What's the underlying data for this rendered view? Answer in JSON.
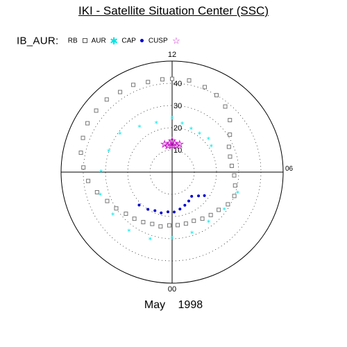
{
  "title": "IKI - Satellite Situation Center (SSC)",
  "legend": {
    "prefix": "IB_AUR:",
    "entries": [
      {
        "label": "RB",
        "symbol": "none"
      },
      {
        "label": "AUR",
        "symbol": "square"
      },
      {
        "label": "CAP",
        "symbol": "star"
      },
      {
        "label": "CUSP",
        "symbol": "dot"
      },
      {
        "label": "",
        "symbol": "open-star"
      }
    ]
  },
  "colors": {
    "AUR": "#777777",
    "CAP": "#00e5e5",
    "CUSP": "#0000cc",
    "RB": "#cc22cc"
  },
  "chart_data": {
    "type": "scatter",
    "projection": "polar (magnetic local time vs colatitude)",
    "mlt_labels": {
      "top": "12",
      "right": "06",
      "bottom": "00"
    },
    "radial_ticks": [
      10,
      20,
      30,
      40
    ],
    "radial_tick_labels": [
      "10",
      "20",
      "30",
      "40"
    ],
    "outer_radius": 50,
    "grid": "dotted circles",
    "series": [
      {
        "name": "AUR",
        "marker": "open-square",
        "region": "auroral oval",
        "points": [
          [
            12.0,
            42
          ],
          [
            11.3,
            42
          ],
          [
            10.6,
            41
          ],
          [
            10.0,
            40
          ],
          [
            9.4,
            38
          ],
          [
            8.8,
            35
          ],
          [
            8.2,
            31
          ],
          [
            7.6,
            28
          ],
          [
            7.0,
            27
          ],
          [
            6.4,
            27
          ],
          [
            5.8,
            28
          ],
          [
            5.2,
            29
          ],
          [
            4.6,
            30
          ],
          [
            4.0,
            29
          ],
          [
            3.4,
            27
          ],
          [
            2.8,
            26
          ],
          [
            2.2,
            25
          ],
          [
            1.6,
            24
          ],
          [
            1.0,
            24
          ],
          [
            0.4,
            24
          ],
          [
            23.8,
            24
          ],
          [
            23.2,
            25
          ],
          [
            22.6,
            25
          ],
          [
            22.0,
            26
          ],
          [
            21.4,
            27
          ],
          [
            20.8,
            28
          ],
          [
            20.2,
            30
          ],
          [
            19.6,
            32
          ],
          [
            19.0,
            35
          ],
          [
            18.4,
            38
          ],
          [
            17.8,
            40
          ],
          [
            17.2,
            42
          ],
          [
            16.6,
            43
          ],
          [
            16.0,
            44
          ],
          [
            15.4,
            44
          ],
          [
            14.8,
            44
          ],
          [
            14.2,
            43
          ],
          [
            13.6,
            43
          ],
          [
            13.0,
            42
          ],
          [
            12.4,
            42
          ]
        ]
      },
      {
        "name": "CAP",
        "marker": "asterisk",
        "region": "polar cap",
        "points": [
          [
            12.0,
            24
          ],
          [
            11.2,
            22
          ],
          [
            10.4,
            21
          ],
          [
            9.6,
            21
          ],
          [
            8.8,
            22
          ],
          [
            8.2,
            21
          ],
          [
            13.2,
            23
          ],
          [
            14.4,
            25
          ],
          [
            15.6,
            29
          ],
          [
            16.8,
            30
          ],
          [
            18.0,
            32
          ],
          [
            19.2,
            34
          ],
          [
            20.4,
            33
          ],
          [
            21.6,
            33
          ],
          [
            22.8,
            32
          ],
          [
            0.0,
            30
          ],
          [
            1.2,
            29
          ],
          [
            2.4,
            28
          ],
          [
            3.6,
            29
          ],
          [
            4.8,
            31
          ]
        ]
      },
      {
        "name": "CUSP",
        "marker": "dot",
        "region": "night-side",
        "points": [
          [
            2.6,
            14
          ],
          [
            2.0,
            15
          ],
          [
            1.4,
            16
          ],
          [
            0.8,
            17
          ],
          [
            0.2,
            18
          ],
          [
            23.6,
            18
          ],
          [
            23.0,
            19
          ],
          [
            22.4,
            19
          ],
          [
            21.8,
            20
          ],
          [
            21.0,
            21
          ],
          [
            3.2,
            16
          ],
          [
            3.6,
            18
          ]
        ]
      },
      {
        "name": "RB",
        "marker": "open-star",
        "region": "dayside",
        "points": [
          [
            12.0,
            12
          ],
          [
            11.7,
            13
          ],
          [
            12.3,
            13
          ],
          [
            11.4,
            12
          ],
          [
            12.6,
            12
          ],
          [
            11.0,
            13
          ],
          [
            13.0,
            13
          ],
          [
            12.0,
            14
          ]
        ]
      }
    ]
  },
  "bottom_label": "May 1998"
}
